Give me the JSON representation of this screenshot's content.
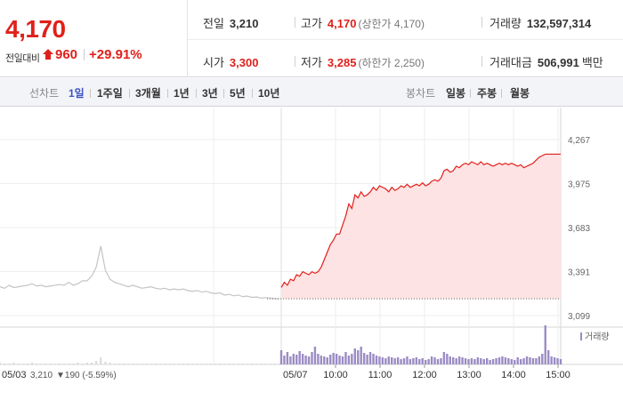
{
  "header": {
    "price": "4,170",
    "change_label": "전일대비",
    "change_value": "960",
    "change_pct": "+29.91%",
    "prev_close_label": "전일",
    "prev_close": "3,210",
    "high_label": "고가",
    "high": "4,170",
    "upper_limit": "(상한가 4,170)",
    "volume_label": "거래량",
    "volume": "132,597,314",
    "open_label": "시가",
    "open": "3,300",
    "low_label": "저가",
    "low": "3,285",
    "lower_limit": "(하한가 2,250)",
    "value_label": "거래대금",
    "value": "506,991",
    "value_unit": "백만"
  },
  "tabs": {
    "line_label": "선차트",
    "periods": [
      "1일",
      "1주일",
      "3개월",
      "1년",
      "3년",
      "5년",
      "10년"
    ],
    "active_period": "1일",
    "candle_label": "봉차트",
    "candles": [
      "일봉",
      "주봉",
      "월봉"
    ]
  },
  "colors": {
    "up": "#e0201b",
    "active_tab": "#3b53c4",
    "prev_line": "#c4c4c4",
    "area_fill": "#fde3e3",
    "volume": "#9b8cc4"
  },
  "chart_data": {
    "type": "line",
    "y_ticks": [
      "4,267",
      "3,975",
      "3,683",
      "3,391",
      "3,099"
    ],
    "ylim": [
      3099,
      4267
    ],
    "reference_price": 3210,
    "legend": "거래량",
    "prev_day": {
      "date": "05/03",
      "summary_close": "3,210",
      "summary_change": "▼190 (-5.59%)",
      "prices": [
        3290,
        3280,
        3300,
        3285,
        3290,
        3295,
        3300,
        3310,
        3295,
        3300,
        3290,
        3295,
        3300,
        3305,
        3300,
        3320,
        3300,
        3310,
        3330,
        3330,
        3360,
        3420,
        3560,
        3400,
        3340,
        3320,
        3310,
        3300,
        3290,
        3300,
        3290,
        3280,
        3285,
        3290,
        3280,
        3275,
        3280,
        3270,
        3275,
        3270,
        3275,
        3265,
        3260,
        3265,
        3255,
        3260,
        3250,
        3245,
        3250,
        3235,
        3240,
        3230,
        3235,
        3225,
        3228,
        3220,
        3222,
        3215,
        3218,
        3215,
        3212,
        3210
      ],
      "volumes": [
        2,
        1,
        1,
        2,
        1,
        1,
        1,
        2,
        1,
        1,
        1,
        1,
        1,
        1,
        1,
        1,
        1,
        2,
        1,
        2,
        2,
        4,
        8,
        3,
        2,
        1,
        1,
        1,
        1,
        1,
        1,
        1,
        1,
        1,
        1,
        1,
        1,
        1,
        1,
        1,
        1,
        1,
        1,
        1,
        1,
        1,
        1,
        1,
        1,
        1,
        1,
        1,
        1,
        1,
        1,
        1,
        1,
        1,
        1,
        1,
        1,
        1
      ]
    },
    "today": {
      "date": "05/07",
      "time_ticks": [
        "10:00",
        "11:00",
        "12:00",
        "13:00",
        "14:00",
        "15:00"
      ],
      "prices": [
        3285,
        3320,
        3300,
        3340,
        3330,
        3370,
        3360,
        3390,
        3380,
        3370,
        3390,
        3380,
        3390,
        3420,
        3470,
        3520,
        3570,
        3600,
        3640,
        3640,
        3700,
        3760,
        3840,
        3810,
        3900,
        3880,
        3920,
        3890,
        3900,
        3920,
        3950,
        3930,
        3960,
        3950,
        3940,
        3920,
        3950,
        3930,
        3940,
        3960,
        3950,
        3970,
        3950,
        3960,
        3970,
        3960,
        3980,
        3960,
        3970,
        3990,
        4000,
        3990,
        4010,
        4060,
        4070,
        4050,
        4060,
        4090,
        4080,
        4100,
        4110,
        4100,
        4120,
        4110,
        4100,
        4120,
        4100,
        4110,
        4100,
        4090,
        4100,
        4110,
        4100,
        4110,
        4100,
        4110,
        4100,
        4090,
        4100,
        4080,
        4090,
        4100,
        4110,
        4130,
        4150,
        4160,
        4170,
        4170,
        4170,
        4170,
        4170,
        4170
      ],
      "volumes": [
        16,
        10,
        14,
        9,
        12,
        11,
        15,
        12,
        10,
        9,
        14,
        20,
        12,
        10,
        9,
        8,
        11,
        13,
        12,
        10,
        9,
        14,
        10,
        12,
        18,
        16,
        20,
        13,
        11,
        14,
        12,
        10,
        9,
        8,
        7,
        9,
        8,
        7,
        8,
        6,
        7,
        9,
        6,
        7,
        8,
        6,
        7,
        5,
        6,
        9,
        8,
        6,
        7,
        14,
        12,
        9,
        8,
        7,
        9,
        8,
        7,
        6,
        7,
        6,
        8,
        7,
        6,
        7,
        5,
        6,
        7,
        8,
        9,
        8,
        7,
        6,
        5,
        8,
        6,
        7,
        9,
        8,
        7,
        7,
        9,
        12,
        44,
        16,
        9,
        8,
        7,
        6
      ]
    }
  }
}
